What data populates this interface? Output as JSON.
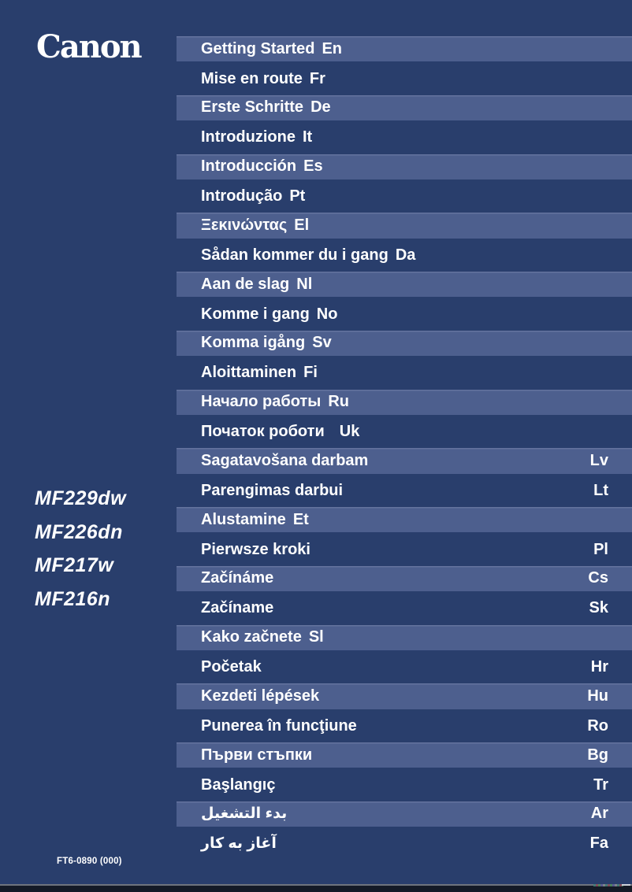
{
  "page": {
    "brand_logo": "Canon",
    "models": [
      "MF229dw",
      "MF226dn",
      "MF217w",
      "MF216n"
    ],
    "part_number": "FT6-0890 (000)",
    "colors": {
      "background": "#293e6c",
      "highlight_bar": "#4d5f8e",
      "highlight_bar_top_edge": "#64739e",
      "text": "#ffffff",
      "bottom_strip": "#141a26",
      "bottom_line": "#6f747e"
    }
  },
  "languages": [
    {
      "title": "Getting Started",
      "code": "En",
      "code_align": "inline",
      "highlighted": true
    },
    {
      "title": "Mise en route",
      "code": "Fr",
      "code_align": "inline",
      "highlighted": false
    },
    {
      "title": "Erste Schritte",
      "code": "De",
      "code_align": "inline",
      "highlighted": true
    },
    {
      "title": "Introduzione",
      "code": "It",
      "code_align": "inline",
      "highlighted": false
    },
    {
      "title": "Introducción",
      "code": "Es",
      "code_align": "inline",
      "highlighted": true
    },
    {
      "title": "Introdução",
      "code": "Pt",
      "code_align": "inline",
      "highlighted": false
    },
    {
      "title": "Ξεκινώντας",
      "code": "El",
      "code_align": "inline",
      "highlighted": true
    },
    {
      "title": "Sådan kommer du i gang",
      "code": "Da",
      "code_align": "inline",
      "highlighted": false
    },
    {
      "title": "Aan de slag",
      "code": "Nl",
      "code_align": "inline",
      "highlighted": true
    },
    {
      "title": "Komme i gang",
      "code": "No",
      "code_align": "inline",
      "highlighted": false
    },
    {
      "title": "Komma igång",
      "code": "Sv",
      "code_align": "inline",
      "highlighted": true
    },
    {
      "title": "Aloittaminen",
      "code": "Fi",
      "code_align": "inline",
      "highlighted": false
    },
    {
      "title": "Начало работы",
      "code": "Ru",
      "code_align": "inline",
      "highlighted": true
    },
    {
      "title": "Початок роботи",
      "code": "Uk",
      "code_align": "inline-wide",
      "highlighted": false
    },
    {
      "title": "Sagatavošana darbam",
      "code": "Lv",
      "code_align": "right",
      "highlighted": true
    },
    {
      "title": "Parengimas darbui",
      "code": "Lt",
      "code_align": "right",
      "highlighted": false
    },
    {
      "title": "Alustamine",
      "code": "Et",
      "code_align": "inline",
      "highlighted": true
    },
    {
      "title": "Pierwsze kroki",
      "code": "Pl",
      "code_align": "right",
      "highlighted": false
    },
    {
      "title": "Začínáme",
      "code": "Cs",
      "code_align": "right",
      "highlighted": true
    },
    {
      "title": "Začíname",
      "code": "Sk",
      "code_align": "right",
      "highlighted": false
    },
    {
      "title": "Kako začnete",
      "code": "Sl",
      "code_align": "inline",
      "highlighted": true
    },
    {
      "title": "Početak",
      "code": "Hr",
      "code_align": "right",
      "highlighted": false
    },
    {
      "title": "Kezdeti lépések",
      "code": "Hu",
      "code_align": "right",
      "highlighted": true
    },
    {
      "title": "Punerea în funcţiune",
      "code": "Ro",
      "code_align": "right",
      "highlighted": false
    },
    {
      "title": "Първи стъпки",
      "code": "Bg",
      "code_align": "right",
      "highlighted": true
    },
    {
      "title": "Başlangıç",
      "code": "Tr",
      "code_align": "right",
      "highlighted": false
    },
    {
      "title": "بدء التشغيل",
      "code": "Ar",
      "code_align": "right",
      "highlighted": true
    },
    {
      "title": "آغاز به کار",
      "code": "Fa",
      "code_align": "right",
      "highlighted": false
    }
  ]
}
